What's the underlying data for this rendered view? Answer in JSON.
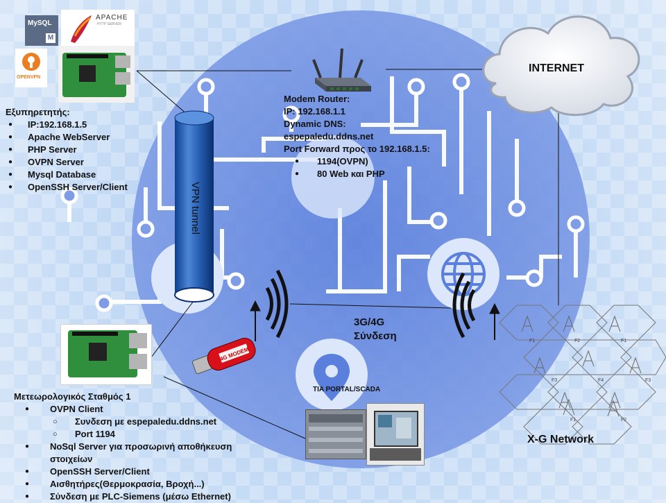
{
  "server": {
    "heading": "Εξυπηρετητής:",
    "items": [
      "IP:192.168.1.5",
      "Apache WebServer",
      "PHP Server",
      "OVPN Server",
      "Mysql Database",
      "OpenSSH Server/Client"
    ]
  },
  "logos": {
    "mysql": "MySQL",
    "apache": "APACHE",
    "apache_sub": "HTTP SERVER",
    "openvpn": "OPENVPN"
  },
  "vpn": {
    "label": "VPN tunnel"
  },
  "router": {
    "lines": [
      "Modem Router:",
      "IP: 192.168.1.1",
      "Dynamic DNS:",
      "espepaledu.ddns.net",
      "Port Forward προς το 192.168.1.5:"
    ],
    "ports": [
      "1194(OVPN)",
      "80 Web και PHP"
    ]
  },
  "internet": {
    "label": "INTERNET"
  },
  "mobile": {
    "label": "3G/4G\nΣύνδεση",
    "line1": "3G/4G",
    "line2": "Σύνδεση"
  },
  "modem_stick": {
    "text": "4G MODEM"
  },
  "scada": {
    "label": "TIA PORTAL/SCADA"
  },
  "xg": {
    "label": "X-G Network",
    "cells": [
      "F1",
      "F2",
      "F1",
      "F3",
      "F4",
      "F3",
      "F1",
      "F2",
      "F1",
      "F2"
    ]
  },
  "station": {
    "heading": "Μετεωρολογικός Σταθμός 1",
    "ovpn": "OVPN Client",
    "ovpn_sub": [
      "Συνδεση με espepaledu.ddns.net",
      "Port 1194"
    ],
    "items": [
      "NoSql Server για προσωρινή  αποθήκευση στοιχείων",
      "OpenSSH Server/Client",
      "Αισθητήρες(Θερμοκρασία, Βροχή...)",
      "Σύνδεση με PLC-Siemens (μέσω Ethernet)"
    ]
  },
  "colors": {
    "bubble": "#6e8fe0",
    "bubble_light": "#ffffff",
    "tunnel": "#2a63b8",
    "accent": "#3a5fcf"
  }
}
